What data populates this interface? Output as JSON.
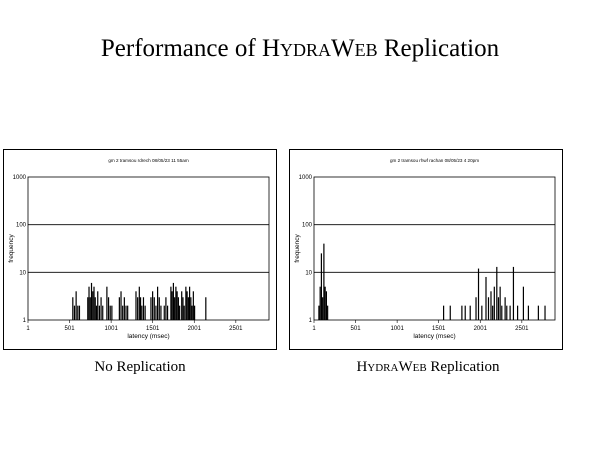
{
  "slide": {
    "title_prefix": "Performance of ",
    "title_brand": "HydraWeb",
    "title_suffix": " Replication"
  },
  "captions": {
    "left": "No Replication",
    "right_brand": "HydraWeb",
    "right_suffix": " Replication"
  },
  "chart_data": [
    {
      "type": "bar",
      "title": "gm 2 tramsou rdrech 08/05/23 11 55am",
      "xlabel": "latency (msec)",
      "ylabel": "frequency",
      "yscale": "log",
      "xlim": [
        1,
        2900
      ],
      "ylim": [
        1,
        1000
      ],
      "xticks": [
        "1",
        "501",
        "1001",
        "1501",
        "2001",
        "2501"
      ],
      "yticks": [
        "1",
        "10",
        "100",
        "1000"
      ],
      "grid": "horizontal",
      "points": [
        [
          540,
          3
        ],
        [
          560,
          2
        ],
        [
          580,
          4
        ],
        [
          600,
          2
        ],
        [
          620,
          2
        ],
        [
          720,
          3
        ],
        [
          735,
          5
        ],
        [
          750,
          3
        ],
        [
          765,
          6
        ],
        [
          780,
          4
        ],
        [
          795,
          5
        ],
        [
          810,
          3
        ],
        [
          825,
          2
        ],
        [
          840,
          4
        ],
        [
          860,
          2
        ],
        [
          880,
          3
        ],
        [
          900,
          2
        ],
        [
          950,
          5
        ],
        [
          970,
          3
        ],
        [
          990,
          2
        ],
        [
          1010,
          2
        ],
        [
          1100,
          3
        ],
        [
          1120,
          4
        ],
        [
          1140,
          2
        ],
        [
          1160,
          3
        ],
        [
          1180,
          2
        ],
        [
          1200,
          2
        ],
        [
          1300,
          4
        ],
        [
          1320,
          3
        ],
        [
          1340,
          5
        ],
        [
          1355,
          3
        ],
        [
          1370,
          2
        ],
        [
          1390,
          3
        ],
        [
          1410,
          2
        ],
        [
          1480,
          3
        ],
        [
          1500,
          4
        ],
        [
          1520,
          3
        ],
        [
          1540,
          2
        ],
        [
          1560,
          5
        ],
        [
          1580,
          3
        ],
        [
          1600,
          2
        ],
        [
          1640,
          2
        ],
        [
          1660,
          3
        ],
        [
          1680,
          2
        ],
        [
          1720,
          5
        ],
        [
          1735,
          4
        ],
        [
          1750,
          6
        ],
        [
          1765,
          3
        ],
        [
          1780,
          5
        ],
        [
          1795,
          4
        ],
        [
          1810,
          3
        ],
        [
          1825,
          2
        ],
        [
          1850,
          4
        ],
        [
          1865,
          3
        ],
        [
          1880,
          2
        ],
        [
          1900,
          5
        ],
        [
          1915,
          4
        ],
        [
          1930,
          3
        ],
        [
          1945,
          5
        ],
        [
          1960,
          3
        ],
        [
          1975,
          2
        ],
        [
          1990,
          4
        ],
        [
          2005,
          2
        ],
        [
          2140,
          3
        ]
      ]
    },
    {
      "type": "bar",
      "title": "gm 2 tramsou rhwf rachan 08/05/23 4 20pm",
      "xlabel": "latency (msec)",
      "ylabel": "frequency",
      "yscale": "log",
      "xlim": [
        1,
        2900
      ],
      "ylim": [
        1,
        1000
      ],
      "xticks": [
        "1",
        "501",
        "1001",
        "1501",
        "2001",
        "2501"
      ],
      "yticks": [
        "1",
        "10",
        "100",
        "1000"
      ],
      "grid": "horizontal",
      "points": [
        [
          60,
          2
        ],
        [
          75,
          5
        ],
        [
          90,
          25
        ],
        [
          105,
          3
        ],
        [
          120,
          40
        ],
        [
          135,
          5
        ],
        [
          150,
          4
        ],
        [
          165,
          2
        ],
        [
          1560,
          2
        ],
        [
          1640,
          2
        ],
        [
          1780,
          2
        ],
        [
          1820,
          2
        ],
        [
          1880,
          2
        ],
        [
          1950,
          3
        ],
        [
          1980,
          12
        ],
        [
          2020,
          2
        ],
        [
          2070,
          8
        ],
        [
          2100,
          3
        ],
        [
          2130,
          4
        ],
        [
          2150,
          2
        ],
        [
          2170,
          5
        ],
        [
          2200,
          13
        ],
        [
          2220,
          3
        ],
        [
          2240,
          5
        ],
        [
          2260,
          2
        ],
        [
          2300,
          3
        ],
        [
          2320,
          2
        ],
        [
          2360,
          2
        ],
        [
          2400,
          13
        ],
        [
          2450,
          2
        ],
        [
          2520,
          5
        ],
        [
          2580,
          2
        ],
        [
          2700,
          2
        ],
        [
          2780,
          2
        ]
      ]
    }
  ]
}
